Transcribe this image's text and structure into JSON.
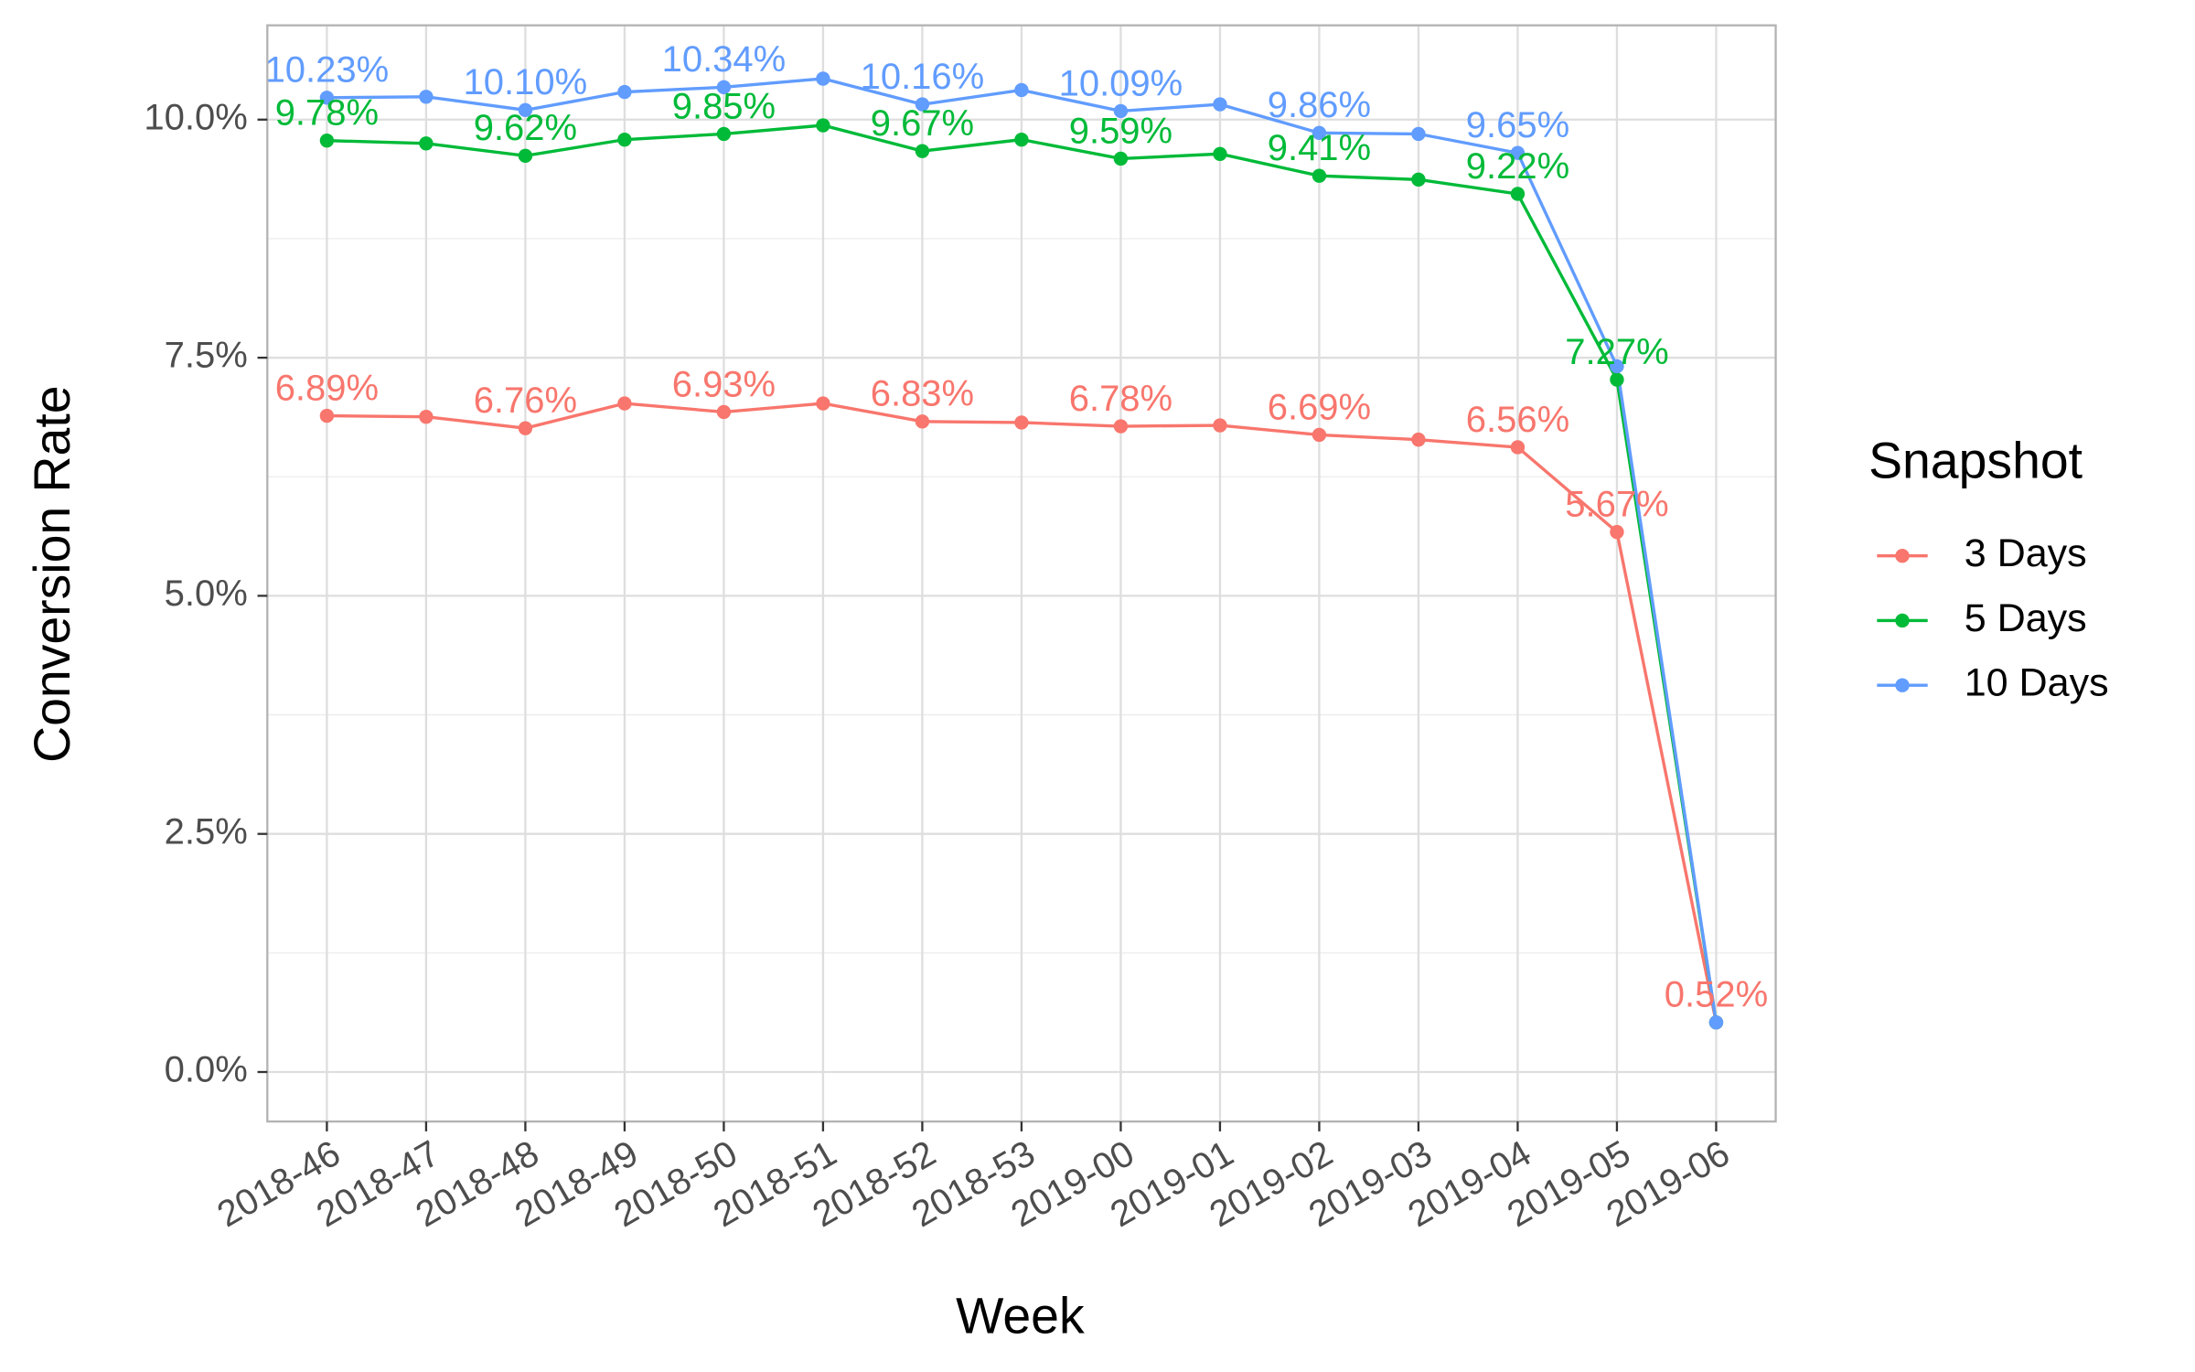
{
  "chart_data": {
    "type": "line",
    "x_label": "Week",
    "y_label": "Conversion Rate",
    "legend_title": "Snapshot",
    "legend_position": "right",
    "grid": true,
    "categories": [
      "2018-46",
      "2018-47",
      "2018-48",
      "2018-49",
      "2018-50",
      "2018-51",
      "2018-52",
      "2018-53",
      "2019-00",
      "2019-01",
      "2019-02",
      "2019-03",
      "2019-04",
      "2019-05",
      "2019-06"
    ],
    "ylim": [
      -0.52,
      10.99
    ],
    "yticks": [
      {
        "value": 0,
        "label": "0.0%"
      },
      {
        "value": 2.5,
        "label": "2.5%"
      },
      {
        "value": 5,
        "label": "5.0%"
      },
      {
        "value": 7.5,
        "label": "7.5%"
      },
      {
        "value": 10,
        "label": "10.0%"
      }
    ],
    "series": [
      {
        "name": "3 Days",
        "color": "#F8766D",
        "values": [
          6.89,
          6.88,
          6.76,
          7.02,
          6.93,
          7.02,
          6.83,
          6.82,
          6.78,
          6.79,
          6.69,
          6.64,
          6.56,
          5.67,
          0.52
        ],
        "value_labels": [
          "6.89%",
          null,
          "6.76%",
          null,
          "6.93%",
          null,
          "6.83%",
          null,
          "6.78%",
          null,
          "6.69%",
          null,
          "6.56%",
          "5.67%",
          "0.52%"
        ]
      },
      {
        "name": "5 Days",
        "color": "#00BA38",
        "values": [
          9.78,
          9.75,
          9.62,
          9.79,
          9.85,
          9.94,
          9.67,
          9.79,
          9.59,
          9.64,
          9.41,
          9.37,
          9.22,
          7.27,
          0.52
        ],
        "value_labels": [
          "9.78%",
          null,
          "9.62%",
          null,
          "9.85%",
          null,
          "9.67%",
          null,
          "9.59%",
          null,
          "9.41%",
          null,
          "9.22%",
          "7.27%",
          null
        ]
      },
      {
        "name": "10 Days",
        "color": "#619CFF",
        "values": [
          10.23,
          10.24,
          10.1,
          10.29,
          10.34,
          10.43,
          10.16,
          10.31,
          10.09,
          10.16,
          9.86,
          9.85,
          9.65,
          7.41,
          0.52
        ],
        "value_labels": [
          "10.23%",
          null,
          "10.10%",
          null,
          "10.34%",
          null,
          "10.16%",
          null,
          "10.09%",
          null,
          "9.86%",
          null,
          "9.65%",
          null,
          null
        ]
      }
    ]
  }
}
